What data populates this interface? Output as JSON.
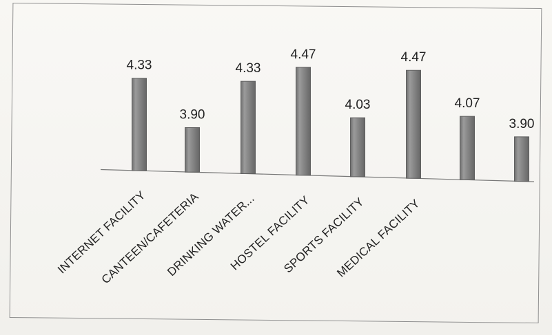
{
  "chart_data": {
    "type": "bar",
    "categories": [
      "INTERNET FACILITY",
      "CANTEEN/CAFETERIA",
      "DRINKING WATER...",
      "HOSTEL FACILITY",
      "SPORTS FACILITY",
      "MEDICAL FACILITY",
      "",
      ""
    ],
    "values": [
      4.33,
      3.9,
      4.33,
      4.47,
      4.03,
      4.47,
      4.07,
      3.9
    ],
    "value_labels": [
      "4.33",
      "3.90",
      "4.33",
      "4.47",
      "4.03",
      "4.47",
      "4.07",
      "3.90"
    ],
    "title": "",
    "xlabel": "",
    "ylabel": "",
    "ylim": [
      3.5,
      4.6
    ],
    "grid": false,
    "legend": "none",
    "colors": {
      "bar": "#8e8e8e",
      "bar_edge": "#5f5f5f",
      "text": "#222222"
    }
  }
}
